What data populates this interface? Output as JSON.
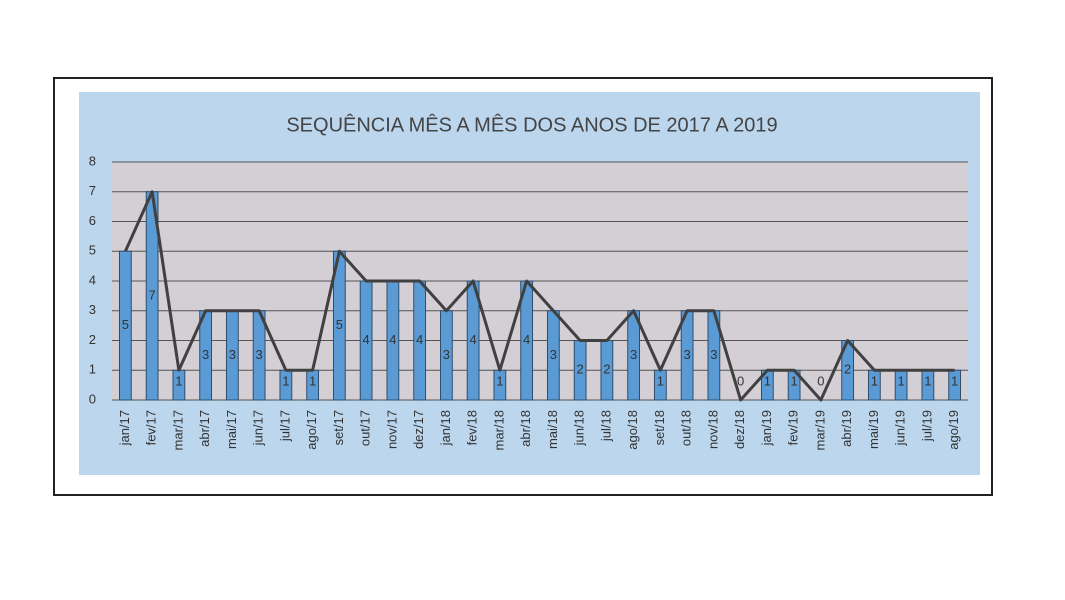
{
  "chart_data": {
    "type": "bar",
    "title": "SEQUÊNCIA MÊS A MÊS DOS ANOS DE 2017 A 2019",
    "categories": [
      "jan/17",
      "fev/17",
      "mar/17",
      "abr/17",
      "mai/17",
      "jun/17",
      "jul/17",
      "ago/17",
      "set/17",
      "out/17",
      "nov/17",
      "dez/17",
      "jan/18",
      "fev/18",
      "mar/18",
      "abr/18",
      "mai/18",
      "jun/18",
      "jul/18",
      "ago/18",
      "set/18",
      "out/18",
      "nov/18",
      "dez/18",
      "jan/19",
      "fev/19",
      "mar/19",
      "abr/19",
      "mai/19",
      "jun/19",
      "jul/19",
      "ago/19"
    ],
    "values": [
      5,
      7,
      1,
      3,
      3,
      3,
      1,
      1,
      5,
      4,
      4,
      4,
      3,
      4,
      1,
      4,
      3,
      2,
      2,
      3,
      1,
      3,
      3,
      0,
      1,
      1,
      0,
      2,
      1,
      1,
      1,
      1
    ],
    "color": "#5b9bd5",
    "line_overlay": true,
    "line_color": "#404040",
    "data_labels": true,
    "ylim": [
      0,
      8
    ],
    "yticks": [
      0,
      1,
      2,
      3,
      4,
      5,
      6,
      7,
      8
    ],
    "grid": true
  }
}
